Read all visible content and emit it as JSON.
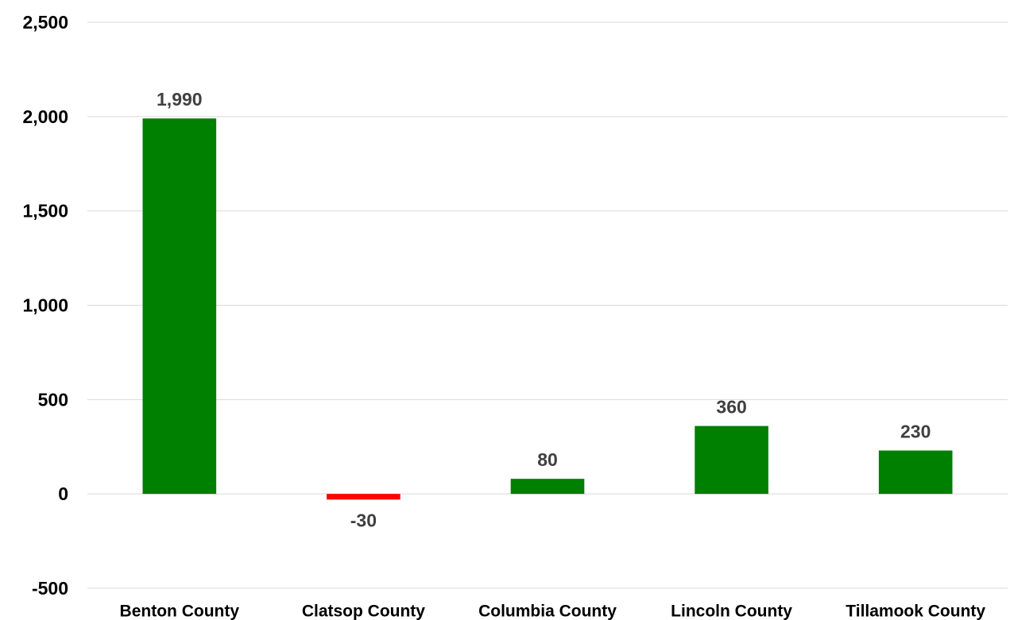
{
  "chart_data": {
    "type": "bar",
    "title": "",
    "xlabel": "",
    "ylabel": "",
    "categories": [
      "Benton County",
      "Clatsop County",
      "Columbia County",
      "Lincoln County",
      "Tillamook County"
    ],
    "values": [
      1990,
      -30,
      80,
      360,
      230
    ],
    "data_labels": [
      "1,990",
      "-30",
      "80",
      "360",
      "230"
    ],
    "ylim": [
      -500,
      2500
    ],
    "yticks": [
      -500,
      0,
      500,
      1000,
      1500,
      2000,
      2500
    ],
    "ytick_labels": [
      "-500",
      "0",
      "500",
      "1,000",
      "1,500",
      "2,000",
      "2,500"
    ],
    "grid": true,
    "legend": "none",
    "colors": {
      "positive": "#008000",
      "negative": "#ff0000",
      "gridline": "#d9d9d9",
      "data_label": "#404040"
    }
  }
}
